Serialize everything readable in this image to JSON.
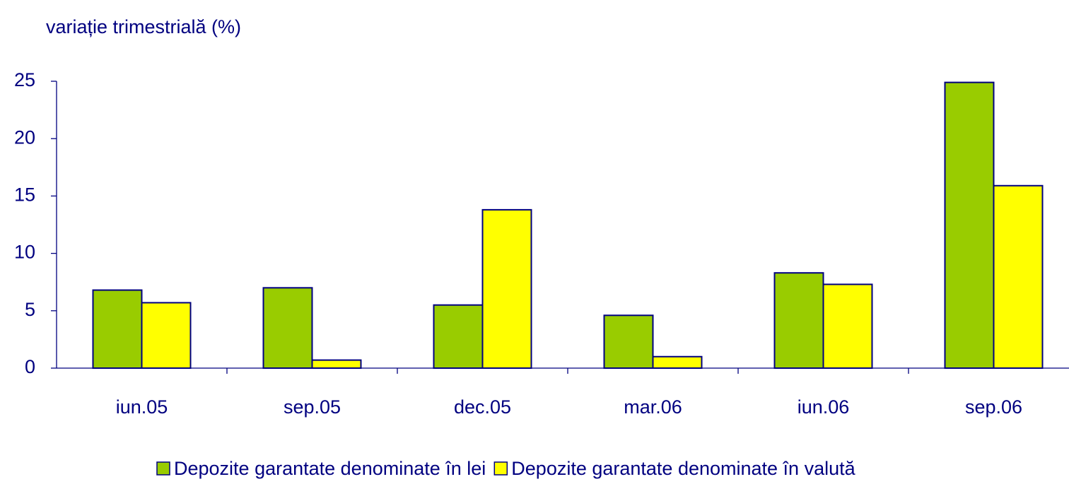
{
  "chart_data": {
    "type": "bar",
    "title": "variație trimestrială (%)",
    "categories": [
      "iun.05",
      "sep.05",
      "dec.05",
      "mar.06",
      "iun.06",
      "sep.06"
    ],
    "series": [
      {
        "name": "Depozite garantate denominate în lei",
        "color": "#99cc00",
        "values": [
          6.8,
          7.0,
          5.5,
          4.6,
          8.3,
          24.9
        ]
      },
      {
        "name": "Depozite garantate denominate în valută",
        "color": "#ffff00",
        "values": [
          5.7,
          0.7,
          13.8,
          1.0,
          7.3,
          15.9
        ]
      }
    ],
    "ylim": [
      0,
      25
    ],
    "yticks": [
      0,
      5,
      10,
      15,
      20,
      25
    ],
    "grid": false,
    "legend": "bottom"
  }
}
